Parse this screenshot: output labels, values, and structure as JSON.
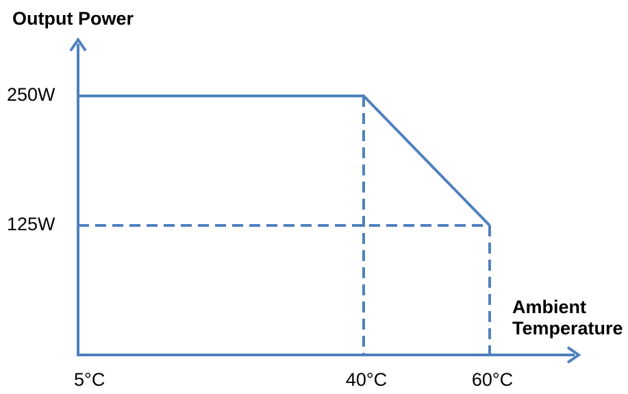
{
  "chart_data": {
    "type": "line",
    "title": "",
    "ylabel": "Output Power",
    "xlabel_lines": [
      "Ambient",
      "Temperature"
    ],
    "x_ticks": [
      {
        "value": 5,
        "label": "5°C"
      },
      {
        "value": 40,
        "label": "40°C"
      },
      {
        "value": 60,
        "label": "60°C"
      }
    ],
    "y_ticks": [
      {
        "value": 250,
        "label": "250W"
      },
      {
        "value": 125,
        "label": "125W"
      }
    ],
    "series": [
      {
        "points": [
          {
            "x": 5,
            "y": 250
          },
          {
            "x": 40,
            "y": 250
          },
          {
            "x": 60,
            "y": 125
          }
        ]
      }
    ],
    "xlim": [
      5,
      60
    ],
    "ylim": [
      0,
      250
    ],
    "grid": false,
    "line_color": "#4f81bd"
  }
}
